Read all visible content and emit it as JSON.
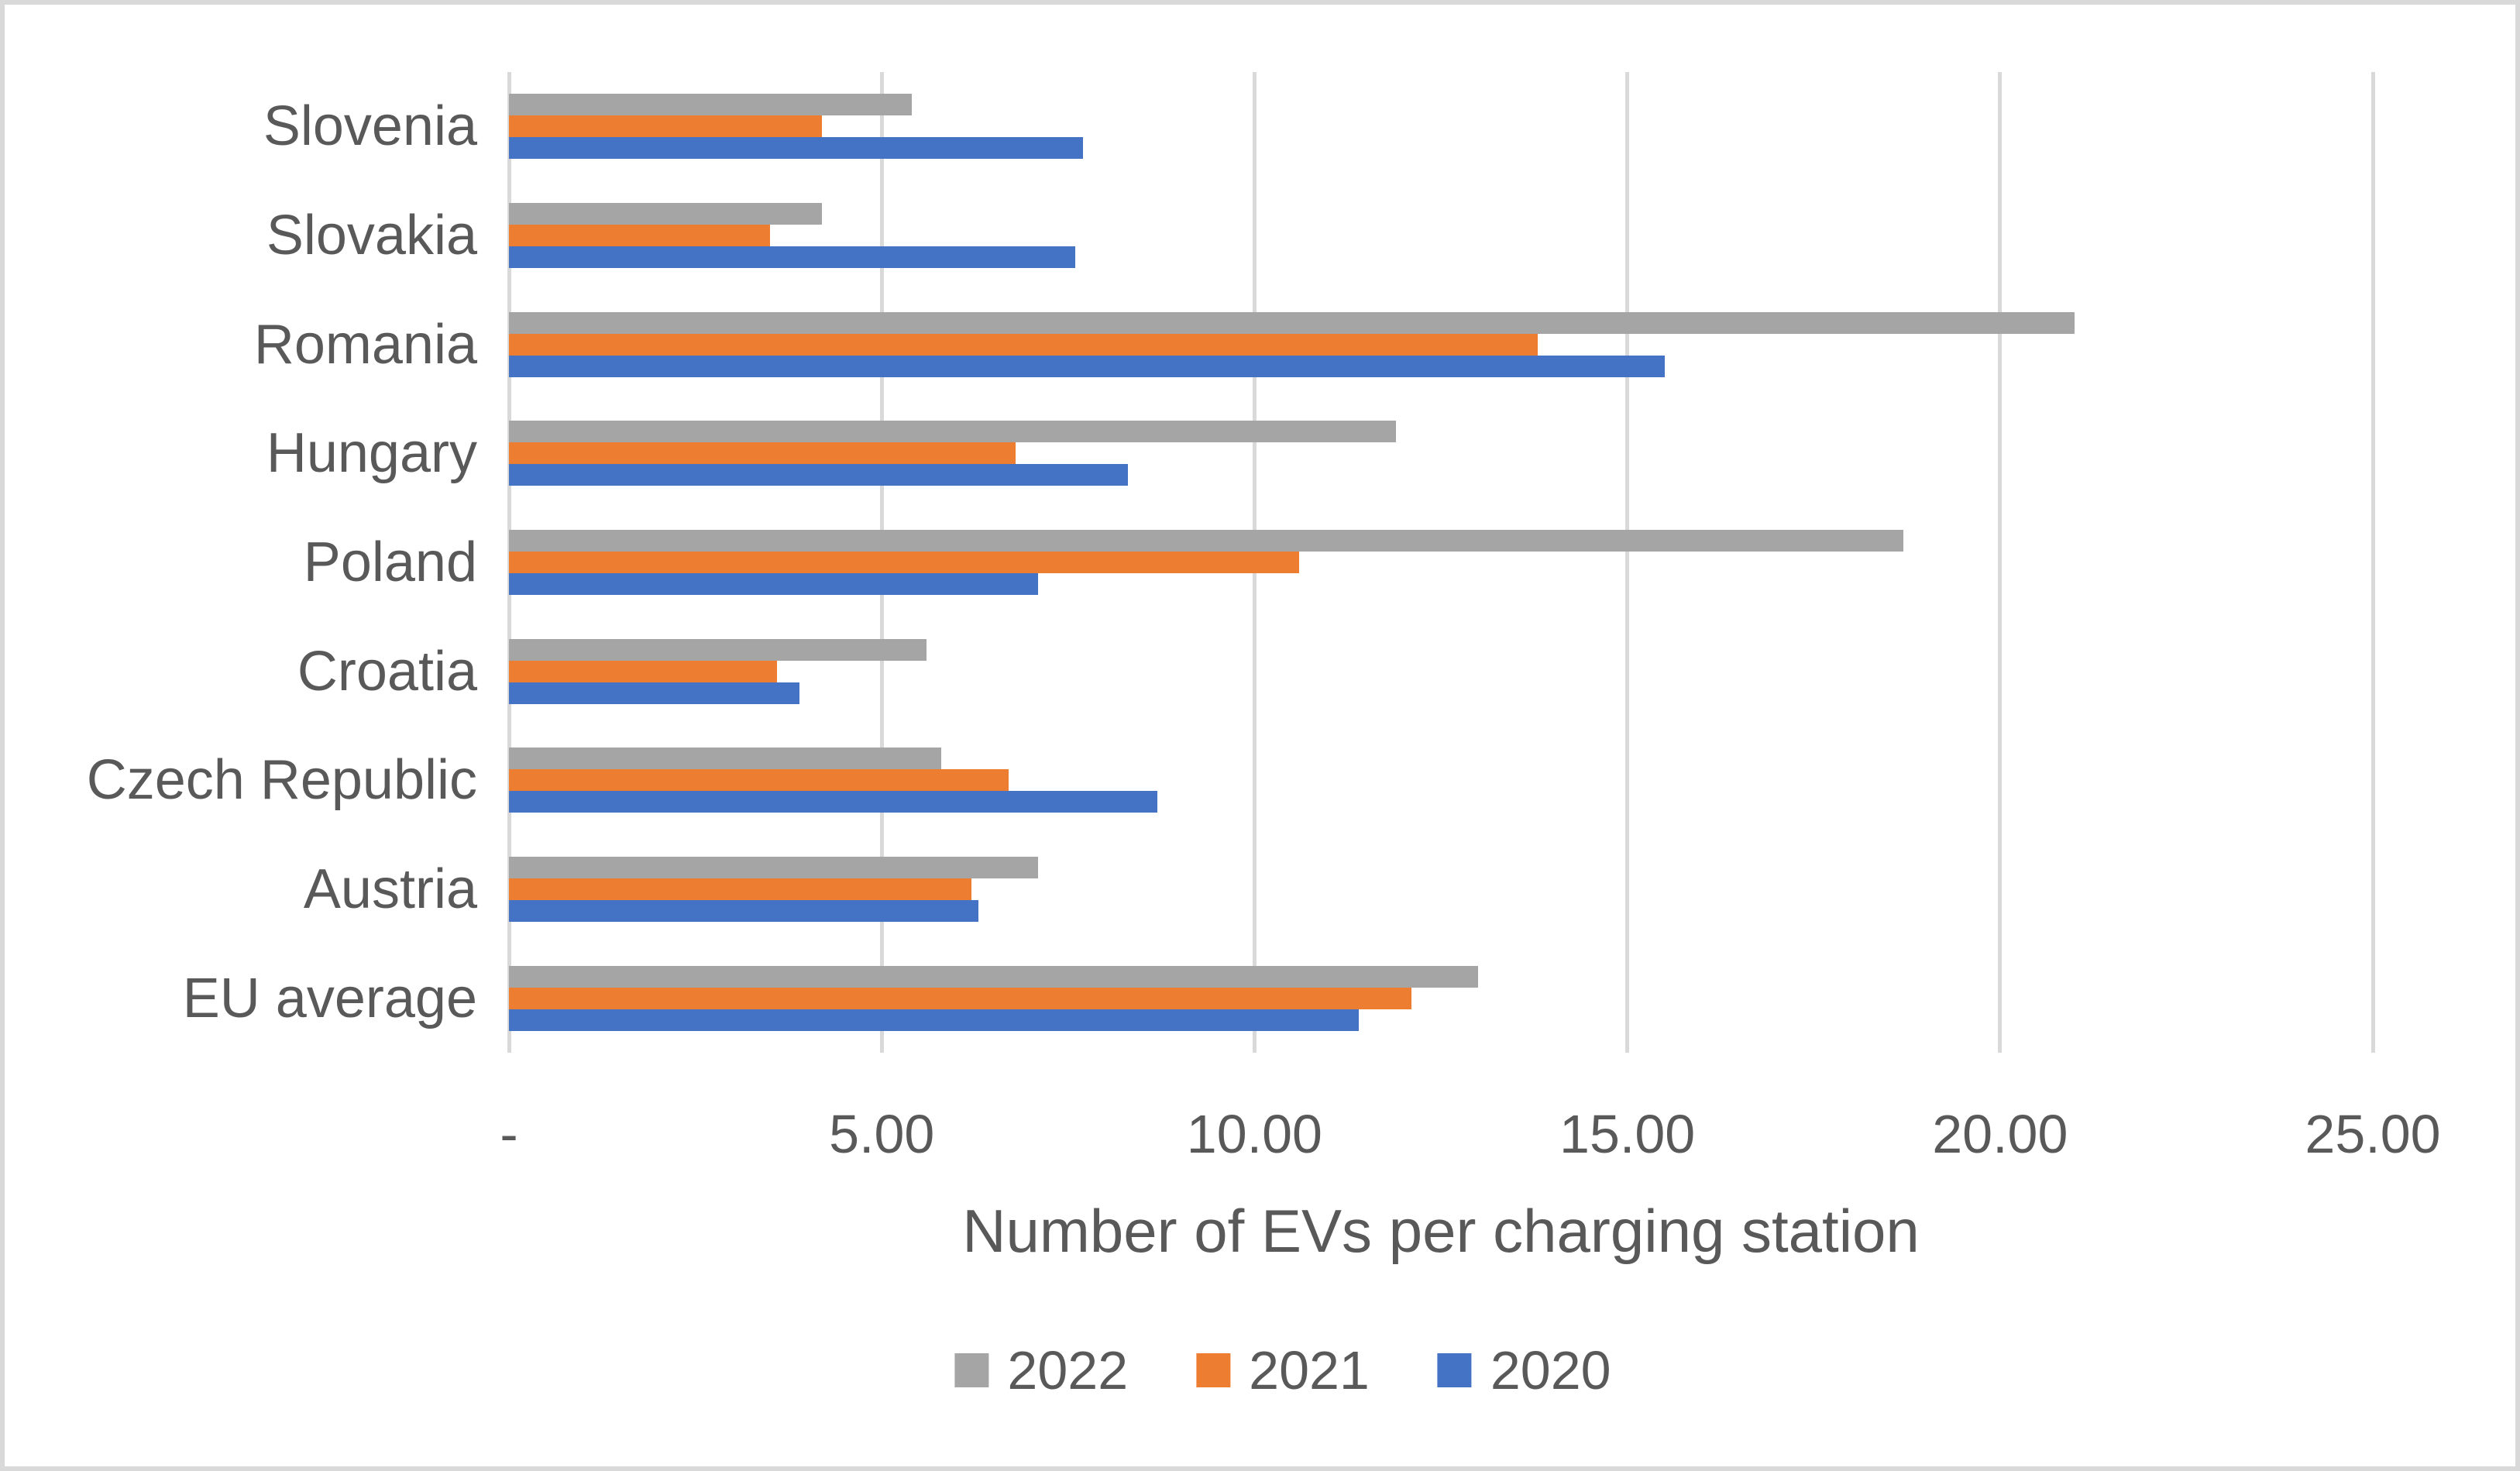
{
  "chart_data": {
    "type": "bar",
    "orientation": "horizontal",
    "title": "",
    "xlabel": "Number of EVs per charging station",
    "ylabel": "",
    "categories": [
      "Slovenia",
      "Slovakia",
      "Romania",
      "Hungary",
      "Poland",
      "Croatia",
      "Czech Republic",
      "Austria",
      "EU average"
    ],
    "series": [
      {
        "name": "2022",
        "color": "#A5A5A5",
        "values": [
          5.4,
          4.2,
          21.0,
          11.9,
          18.7,
          5.6,
          5.8,
          7.1,
          13.0
        ]
      },
      {
        "name": "2021",
        "color": "#ED7D31",
        "values": [
          4.2,
          3.5,
          13.8,
          6.8,
          10.6,
          3.6,
          6.7,
          6.2,
          12.1
        ]
      },
      {
        "name": "2020",
        "color": "#4472C4",
        "values": [
          7.7,
          7.6,
          15.5,
          8.3,
          7.1,
          3.9,
          8.7,
          6.3,
          11.4
        ]
      }
    ],
    "xlim": [
      0,
      25
    ],
    "xticks": [
      0,
      5,
      10,
      15,
      20,
      25
    ],
    "xtick_labels": [
      "-",
      "5.00",
      "10.00",
      "15.00",
      "20.00",
      "25.00"
    ],
    "grid": true,
    "legend_position": "bottom",
    "colors": {
      "grid": "#D9D9D9",
      "axis_text": "#595959",
      "border": "#D9D9D9",
      "background": "#FFFFFF"
    }
  }
}
